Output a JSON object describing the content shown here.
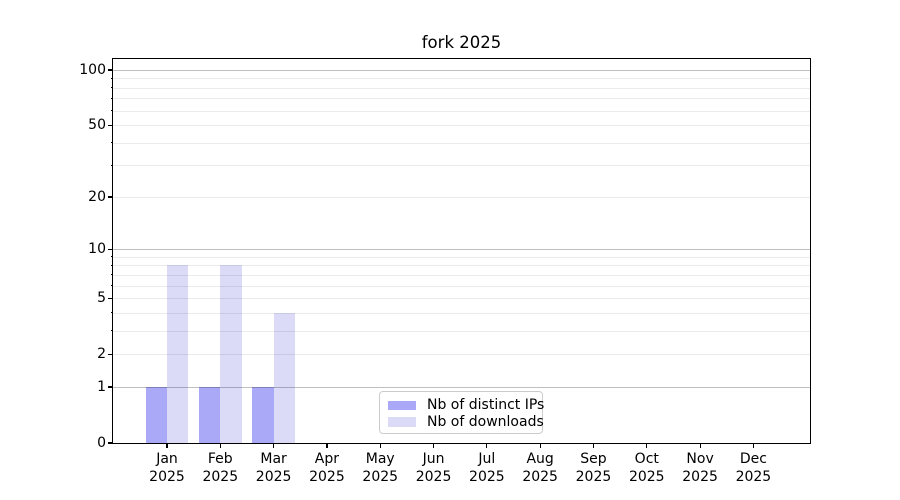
{
  "chart_data": {
    "type": "bar",
    "title": "fork 2025",
    "categories": [
      "Jan 2025",
      "Feb 2025",
      "Mar 2025",
      "Apr 2025",
      "May 2025",
      "Jun 2025",
      "Jul 2025",
      "Aug 2025",
      "Sep 2025",
      "Oct 2025",
      "Nov 2025",
      "Dec 2025"
    ],
    "series": [
      {
        "name": "Nb of distinct IPs",
        "color": "#a9a9f8",
        "values": [
          1,
          1,
          1,
          0,
          0,
          0,
          0,
          0,
          0,
          0,
          0,
          0
        ]
      },
      {
        "name": "Nb of downloads",
        "color": "#dbdbf8",
        "values": [
          8,
          8,
          4,
          0,
          0,
          0,
          0,
          0,
          0,
          0,
          0,
          0
        ]
      }
    ],
    "y_axis": {
      "scale": "log1p",
      "ticks": [
        0,
        1,
        2,
        5,
        10,
        20,
        50,
        100
      ],
      "major_gridlines": [
        1,
        10,
        100
      ],
      "minor_gridlines": [
        2,
        3,
        4,
        5,
        6,
        7,
        8,
        9,
        20,
        30,
        40,
        50,
        60,
        70,
        80,
        90
      ],
      "ylim": [
        0,
        115
      ]
    },
    "legend": {
      "position": "lower center"
    },
    "colors": {
      "major_grid": "rgba(0,0,0,0.25)",
      "minor_grid": "rgba(0,0,0,0.08)",
      "axis": "#000000",
      "background": "#ffffff"
    }
  }
}
